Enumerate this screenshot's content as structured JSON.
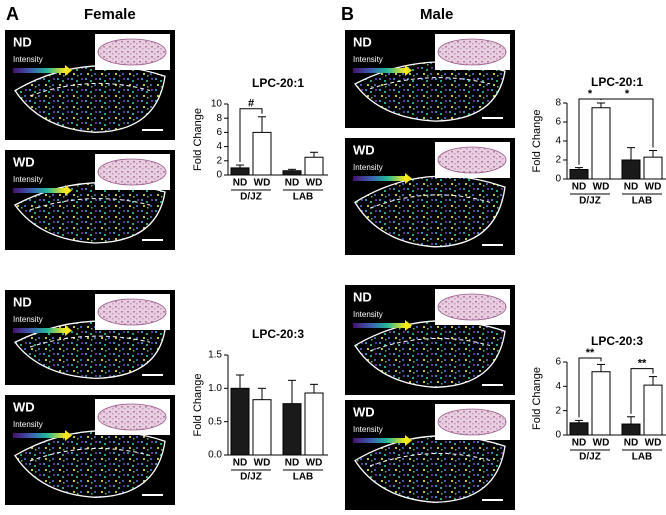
{
  "headers": [
    {
      "letter": "A",
      "title": "Female"
    },
    {
      "letter": "B",
      "title": "Male"
    }
  ],
  "panels": [
    {
      "label": "ND",
      "scale": "Intensity"
    },
    {
      "label": "WD",
      "scale": "Intensity"
    },
    {
      "label": "ND",
      "scale": "Intensity"
    },
    {
      "label": "WD",
      "scale": "Intensity"
    },
    {
      "label": "ND",
      "scale": "Intensity"
    },
    {
      "label": "WD",
      "scale": "Intensity"
    },
    {
      "label": "ND",
      "scale": "Intensity"
    },
    {
      "label": "WD",
      "scale": "Intensity"
    }
  ],
  "chart_data": [
    {
      "type": "bar",
      "title": "LPC-20:1",
      "y_label": "Fold Change",
      "categories": [
        "D/JZ",
        "LAB"
      ],
      "series": [
        {
          "name": "ND",
          "color": "#1a1a1a",
          "values": [
            1.0,
            0.6
          ],
          "errors": [
            0.4,
            0.2
          ]
        },
        {
          "name": "WD",
          "color": "#ffffff",
          "values": [
            6.0,
            2.5
          ],
          "errors": [
            2.2,
            0.7
          ]
        }
      ],
      "ylim": [
        0,
        10
      ],
      "yticks": [
        0,
        2,
        4,
        6,
        8,
        10
      ],
      "annotations": [
        "#"
      ]
    },
    {
      "type": "bar",
      "title": "LPC-20:3",
      "y_label": "Fold Change",
      "categories": [
        "D/JZ",
        "LAB"
      ],
      "series": [
        {
          "name": "ND",
          "color": "#1a1a1a",
          "values": [
            1.0,
            0.77
          ],
          "errors": [
            0.2,
            0.35
          ]
        },
        {
          "name": "WD",
          "color": "#ffffff",
          "values": [
            0.83,
            0.93
          ],
          "errors": [
            0.17,
            0.13
          ]
        }
      ],
      "ylim": [
        0,
        1.5
      ],
      "yticks": [
        {
          "value": 0,
          "label": "0.0"
        },
        {
          "value": 0.5,
          "label": "0.5"
        },
        {
          "value": 1,
          "label": "1.0"
        },
        {
          "value": 1.5,
          "label": "1.5"
        }
      ],
      "annotations": []
    },
    {
      "type": "bar",
      "title": "LPC-20:1",
      "y_label": "Fold Change",
      "categories": [
        "D/JZ",
        "LAB"
      ],
      "series": [
        {
          "name": "ND",
          "color": "#1a1a1a",
          "values": [
            1.0,
            2.0
          ],
          "errors": [
            0.2,
            1.3
          ]
        },
        {
          "name": "WD",
          "color": "#ffffff",
          "values": [
            7.5,
            2.3
          ],
          "errors": [
            0.5,
            0.7
          ]
        }
      ],
      "ylim": [
        0,
        8
      ],
      "yticks": [
        0,
        2,
        4,
        6,
        8
      ],
      "annotations": [
        "*",
        "*"
      ]
    },
    {
      "type": "bar",
      "title": "LPC-20:3",
      "y_label": "Fold Change",
      "categories": [
        "D/JZ",
        "LAB"
      ],
      "series": [
        {
          "name": "ND",
          "color": "#1a1a1a",
          "values": [
            1.0,
            0.9
          ],
          "errors": [
            0.2,
            0.6
          ]
        },
        {
          "name": "WD",
          "color": "#ffffff",
          "values": [
            5.2,
            4.1
          ],
          "errors": [
            0.6,
            0.7
          ]
        }
      ],
      "ylim": [
        0,
        6
      ],
      "yticks": [
        0,
        2,
        4,
        6
      ],
      "annotations": [
        "**",
        "**"
      ]
    }
  ]
}
